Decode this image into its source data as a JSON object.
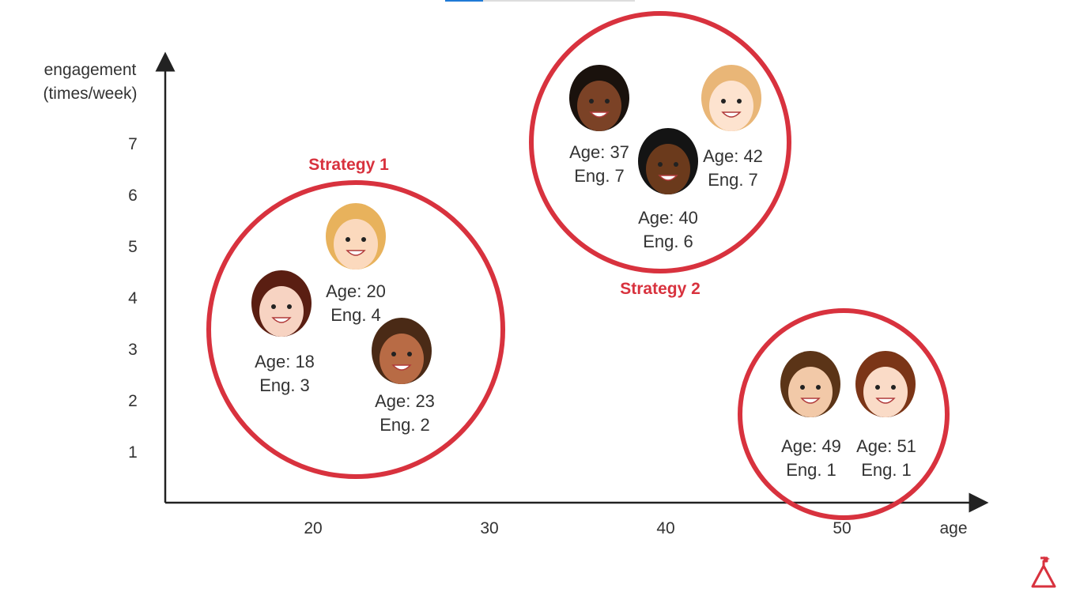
{
  "colors": {
    "accent": "#d8323e",
    "axis": "#222222",
    "text": "#333333",
    "tab_active": "#1f7ad6",
    "tab_inactive": "#dddddd"
  },
  "chart_data": {
    "type": "scatter",
    "xlabel": "age",
    "ylabel": "engagement (times/week)",
    "ylabel_lines": [
      "engagement",
      "(times/week)"
    ],
    "xticks": [
      20,
      30,
      40,
      50
    ],
    "xtick_labels": [
      "20",
      "30",
      "40",
      "50"
    ],
    "yticks": [
      1,
      2,
      3,
      4,
      5,
      6,
      7
    ],
    "ytick_labels": [
      "1",
      "2",
      "3",
      "4",
      "5",
      "6",
      "7"
    ],
    "grid": false,
    "points": [
      {
        "age": 18,
        "engagement": 3,
        "label_age": "Age: 18",
        "label_eng": "Eng. 3",
        "icon": "woman-brown-hair-avatar-icon"
      },
      {
        "age": 20,
        "engagement": 4,
        "label_age": "Age: 20",
        "label_eng": "Eng. 4",
        "icon": "blond-boy-avatar-icon"
      },
      {
        "age": 23,
        "engagement": 2,
        "label_age": "Age: 23",
        "label_eng": "Eng. 2",
        "icon": "woman-bun-avatar-icon"
      },
      {
        "age": 37,
        "engagement": 7,
        "label_age": "Age: 37",
        "label_eng": "Eng. 7",
        "icon": "woman-curly-hair-avatar-icon"
      },
      {
        "age": 40,
        "engagement": 6,
        "label_age": "Age: 40",
        "label_eng": "Eng. 6",
        "icon": "man-curly-hair-avatar-icon"
      },
      {
        "age": 42,
        "engagement": 7,
        "label_age": "Age: 42",
        "label_eng": "Eng. 7",
        "icon": "woman-phone-avatar-icon"
      },
      {
        "age": 49,
        "engagement": 1,
        "label_age": "Age: 49",
        "label_eng": "Eng. 1",
        "icon": "man-brown-hair-avatar-icon"
      },
      {
        "age": 51,
        "engagement": 1,
        "label_age": "Age: 51",
        "label_eng": "Eng. 1",
        "icon": "woman-long-hair-avatar-icon"
      }
    ],
    "clusters": [
      {
        "label": "Strategy 1",
        "members": [
          0,
          1,
          2
        ]
      },
      {
        "label": "Strategy 2",
        "members": [
          3,
          4,
          5
        ]
      },
      {
        "label": "",
        "members": [
          6,
          7
        ]
      }
    ]
  },
  "logo_icon": "flask-logo-icon"
}
